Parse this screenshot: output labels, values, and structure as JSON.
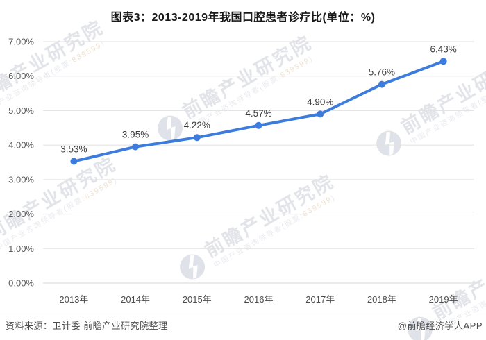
{
  "title": "图表3：2013-2019年我国口腔患者诊疗比(单位：%)",
  "chart_data": {
    "type": "line",
    "title": "图表3：2013-2019年我国口腔患者诊疗比(单位：%)",
    "categories": [
      "2013年",
      "2014年",
      "2015年",
      "2016年",
      "2017年",
      "2018年",
      "2019年"
    ],
    "series": [
      {
        "name": "口腔患者诊疗比",
        "values": [
          3.53,
          3.95,
          4.22,
          4.57,
          4.9,
          5.76,
          6.43
        ]
      }
    ],
    "point_labels": [
      "3.53%",
      "3.95%",
      "4.22%",
      "4.57%",
      "4.90%",
      "5.76%",
      "6.43%"
    ],
    "xlabel": "",
    "ylabel": "",
    "ylim": [
      0,
      7
    ],
    "y_tick_labels": [
      "0.00%",
      "1.00%",
      "2.00%",
      "3.00%",
      "4.00%",
      "5.00%",
      "6.00%",
      "7.00%"
    ],
    "grid": true,
    "legend_position": "none"
  },
  "colors": {
    "line": "#3D7CDC",
    "marker": "#3D7CDC",
    "grid": "#E1E1E1",
    "axis_line": "#D6D6D6",
    "axis_text": "#595959",
    "data_label": "#3D3D3D",
    "title_text": "#1A1A1A",
    "watermark_text": "#E2E4E9",
    "watermark_logo": "#DFE2E8"
  },
  "watermark": {
    "large_text": "前瞻产业研究院",
    "small_text_prefix": "中国产业咨询领导者(股票:",
    "stock_code": "839599",
    "small_text_suffix": ")"
  },
  "footer": {
    "source": "资料来源：卫计委 前瞻产业研究院整理",
    "credit": "@前瞻经济学人APP"
  }
}
